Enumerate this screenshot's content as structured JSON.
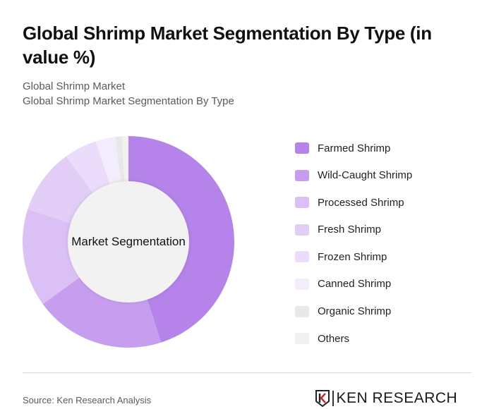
{
  "header": {
    "title": "Global Shrimp Market Segmentation By Type (in value %)",
    "subtitle_1": "Global Shrimp Market",
    "subtitle_2": "Global Shrimp Market Segmentation By Type"
  },
  "chart": {
    "center_label": "Market Segmentation"
  },
  "legend": [
    {
      "label": "Farmed Shrimp",
      "color": "#b583ea"
    },
    {
      "label": "Wild-Caught Shrimp",
      "color": "#c79eef"
    },
    {
      "label": "Processed Shrimp",
      "color": "#dbc0f6"
    },
    {
      "label": "Fresh Shrimp",
      "color": "#e2cdf7"
    },
    {
      "label": "Frozen Shrimp",
      "color": "#eadcfa"
    },
    {
      "label": "Canned Shrimp",
      "color": "#f3ecfc"
    },
    {
      "label": "Organic Shrimp",
      "color": "#e8e8e8"
    },
    {
      "label": "Others",
      "color": "#f1f1f1"
    }
  ],
  "footer": {
    "source": "Source: Ken Research Analysis",
    "logo_text": "KEN RESEARCH"
  },
  "chart_data": {
    "type": "pie",
    "variant": "donut",
    "title": "Global Shrimp Market Segmentation By Type (in value %)",
    "subtitle": "Global Shrimp Market Segmentation By Type",
    "center_label": "Market Segmentation",
    "categories": [
      "Farmed Shrimp",
      "Wild-Caught Shrimp",
      "Processed Shrimp",
      "Fresh Shrimp",
      "Frozen Shrimp",
      "Canned Shrimp",
      "Organic Shrimp",
      "Others"
    ],
    "values": [
      45,
      20,
      15,
      10,
      5,
      3,
      1,
      1
    ],
    "colors": [
      "#b583ea",
      "#c79eef",
      "#dbc0f6",
      "#e2cdf7",
      "#eadcfa",
      "#f3ecfc",
      "#e8e8e8",
      "#f1f1f1"
    ],
    "unit": "%",
    "legend_position": "right",
    "start_angle": "12 o'clock, clockwise"
  }
}
